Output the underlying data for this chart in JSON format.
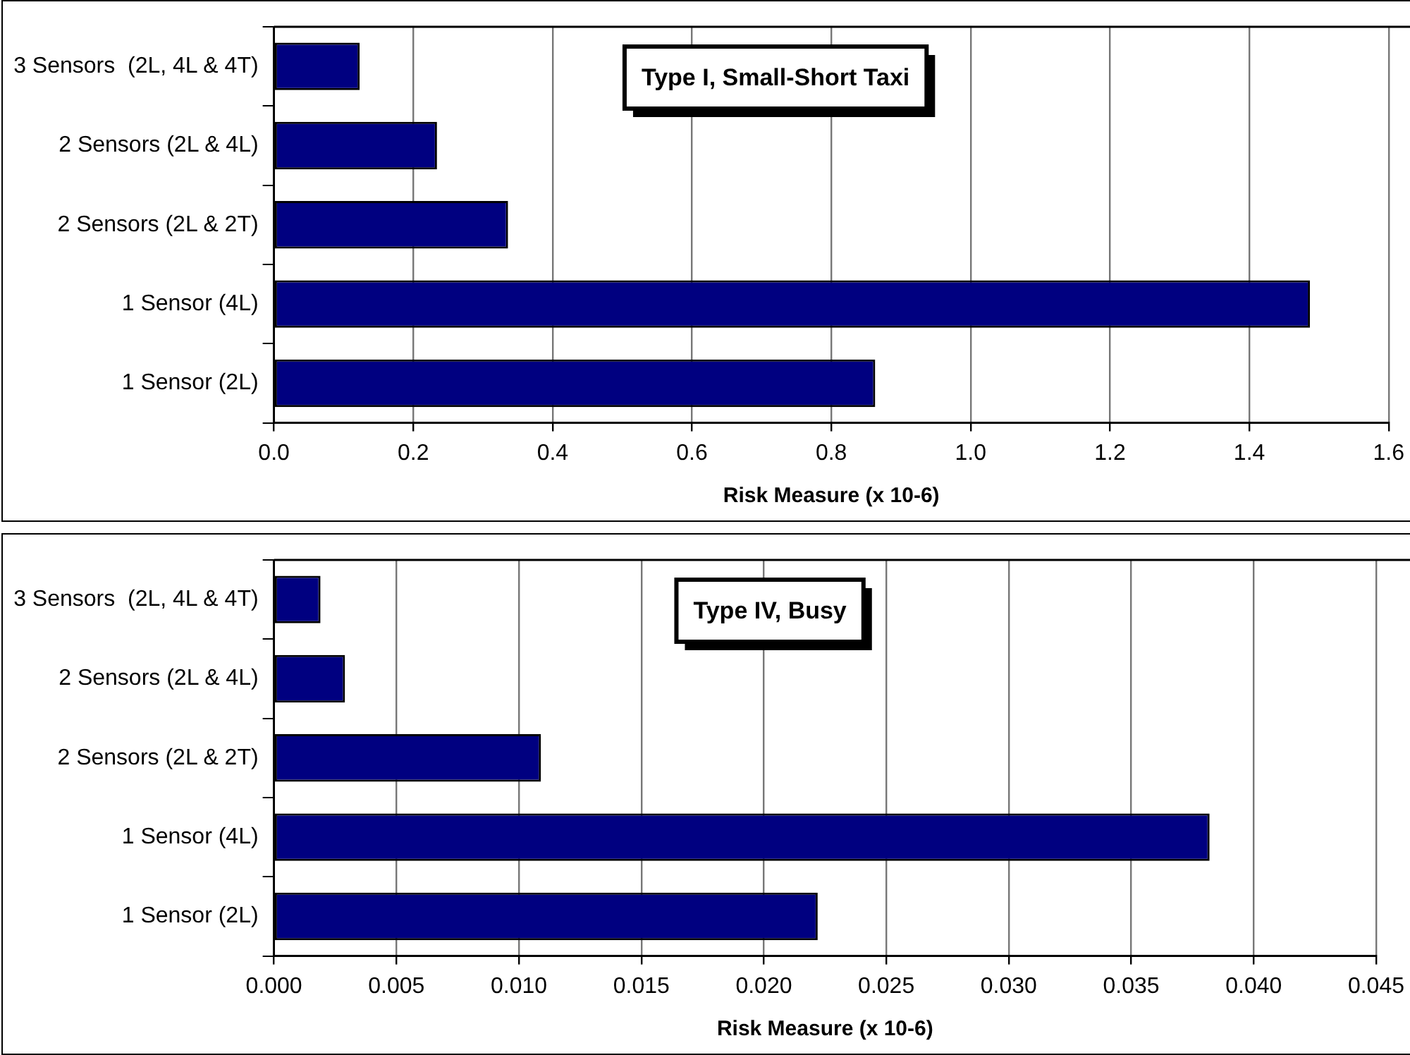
{
  "chart_data": [
    {
      "type": "bar",
      "orientation": "horizontal",
      "categories": [
        "3 Sensors  (2L, 4L & 4T)",
        "2 Sensors (2L & 4L)",
        "2 Sensors (2L & 2T)",
        "1 Sensor (4L)",
        "1 Sensor (2L)"
      ],
      "values": [
        0.123,
        0.234,
        0.336,
        1.487,
        0.863
      ],
      "color": "#000080",
      "xlim": [
        0,
        1.6
      ],
      "xticks": [
        {
          "value": 0,
          "label": "0.0"
        },
        0.2,
        0.4,
        0.6,
        0.8,
        {
          "value": 1,
          "label": "1.0"
        },
        1.2,
        1.4,
        1.6
      ],
      "xlabel": "Risk Measure (x 10-6)",
      "annotations": [
        "Type I, Small-Short Taxi"
      ],
      "grid": "x",
      "legend": false
    },
    {
      "type": "bar",
      "orientation": "horizontal",
      "categories": [
        "3 Sensors  (2L, 4L & 4T)",
        "2 Sensors (2L & 4L)",
        "2 Sensors (2L & 2T)",
        "1 Sensor (4L)",
        "1 Sensor (2L)"
      ],
      "values": [
        0.0019,
        0.0029,
        0.0109,
        0.0382,
        0.0222
      ],
      "color": "#000080",
      "xlim": [
        0,
        0.045
      ],
      "xticks": [
        {
          "value": 0,
          "label": "0.000"
        },
        0.005,
        {
          "value": 0.01,
          "label": "0.010"
        },
        0.015,
        {
          "value": 0.02,
          "label": "0.020"
        },
        0.025,
        {
          "value": 0.03,
          "label": "0.030"
        },
        0.035,
        {
          "value": 0.04,
          "label": "0.040"
        },
        0.045
      ],
      "xlabel": "Risk Measure (x 10-6)",
      "annotations": [
        "Type IV, Busy"
      ],
      "grid": "x",
      "legend": false
    }
  ]
}
